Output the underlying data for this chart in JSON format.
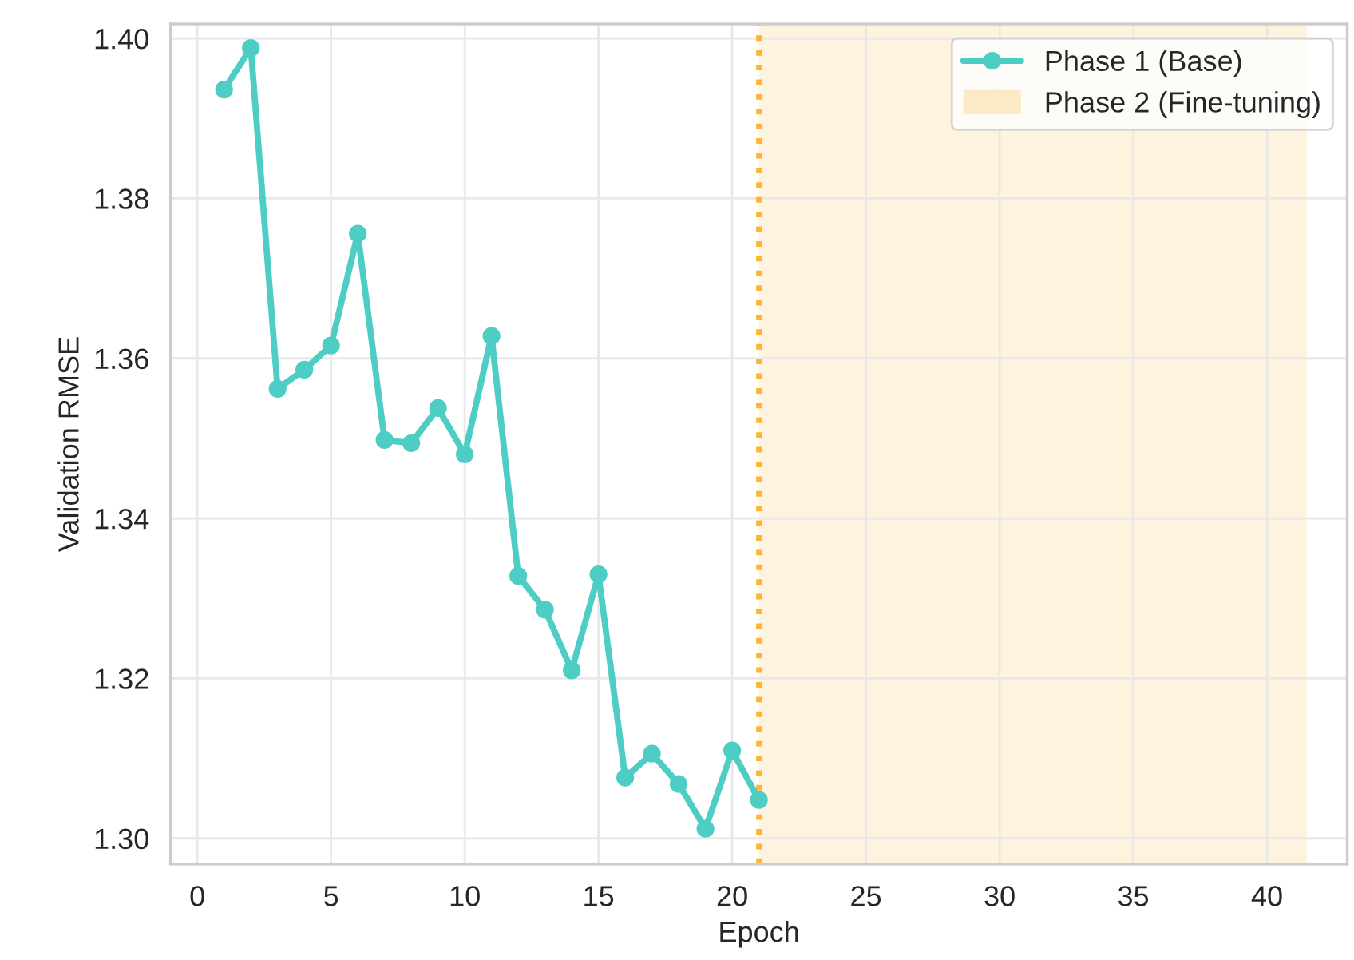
{
  "chart_data": {
    "type": "line",
    "xlabel": "Epoch",
    "ylabel": "Validation RMSE",
    "x": [
      1,
      2,
      3,
      4,
      5,
      6,
      7,
      8,
      9,
      10,
      11,
      12,
      13,
      14,
      15,
      16,
      17,
      18,
      19,
      20,
      21
    ],
    "series": [
      {
        "name": "Phase 1 (Base)",
        "color": "#4ecdc4",
        "values": [
          1.3936,
          1.3988,
          1.3562,
          1.3586,
          1.3616,
          1.3756,
          1.3498,
          1.3494,
          1.3538,
          1.348,
          1.3628,
          1.3328,
          1.3286,
          1.321,
          1.333,
          1.3076,
          1.3106,
          1.3068,
          1.3012,
          1.311,
          1.3048
        ]
      }
    ],
    "bands": [
      {
        "axis": "x",
        "from": 21,
        "to": 41.5,
        "label": "Phase 2 (Fine-tuning)",
        "color": "#fdebc8"
      }
    ],
    "ref_lines": [
      {
        "axis": "x",
        "value": 21,
        "color": "#ffb432",
        "line_style": "dotted"
      }
    ],
    "xlim": [
      -1,
      43
    ],
    "xticks": [
      0,
      5,
      10,
      15,
      20,
      25,
      30,
      35,
      40
    ],
    "ylim": [
      1.2968,
      1.4018
    ],
    "yticks": [
      {
        "value": 1.3,
        "label": "1.30"
      },
      {
        "value": 1.32,
        "label": "1.32"
      },
      {
        "value": 1.34,
        "label": "1.34"
      },
      {
        "value": 1.36,
        "label": "1.36"
      },
      {
        "value": 1.38,
        "label": "1.38"
      },
      {
        "value": 1.4,
        "label": "1.40"
      }
    ],
    "grid": true,
    "legend": "top right",
    "marker": "circle",
    "line_style": "solid"
  }
}
